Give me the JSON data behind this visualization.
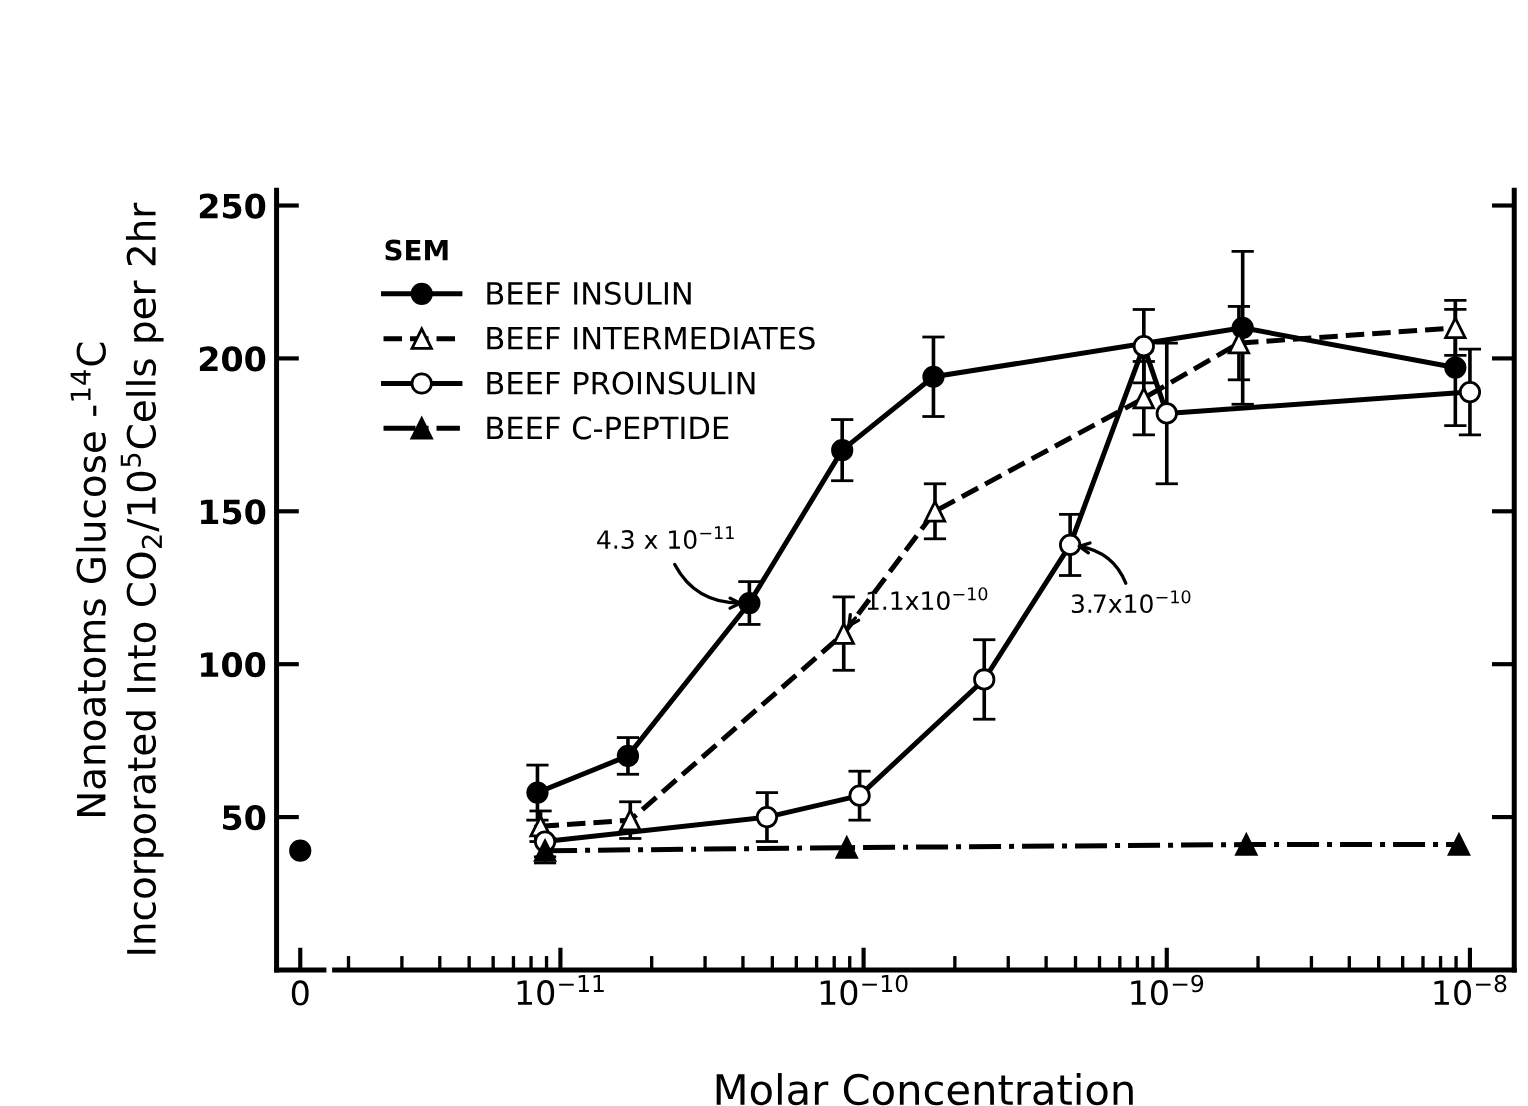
{
  "chart_data": [
    {
      "type": "scatter",
      "categories": [
        "0"
      ],
      "values": [
        39
      ],
      "color": "#000000",
      "marker": "circle",
      "ylim": [
        0,
        255
      ],
      "yticks": [
        50,
        100,
        150,
        200,
        250
      ],
      "ylabel": "Nanoatoms Glucose -$^{14}$C\nIncorporated Into CO$_{2}$/10$^{5}$Cells per 2hr"
    },
    {
      "type": "line",
      "log": "x",
      "xlim": [
        1.8e-12,
        1.4e-08
      ],
      "xticks": [
        {
          "value": 1e-11,
          "label": "10$^{−11}$"
        },
        {
          "value": 1e-10,
          "label": "10$^{−10}$"
        },
        {
          "value": 1e-09,
          "label": "10$^{−9}$"
        },
        {
          "value": 1e-08,
          "label": "10$^{−8}$"
        }
      ],
      "ylim": [
        0,
        255
      ],
      "yticks": [
        50,
        100,
        150,
        200,
        250
      ],
      "tick_labels": "x",
      "xlabel": "Molar Concentration",
      "legend": "top left",
      "legend_title": "SEM",
      "series": [
        {
          "name": "BEEF INSULIN",
          "color": "#000000",
          "marker": "circle",
          "line_style": "solid",
          "x": [
            8.4e-12,
            1.67e-11,
            4.2e-11,
            8.5e-11,
            1.7e-10,
            1.78e-09,
            8.95e-09
          ],
          "values": [
            58,
            70,
            120,
            170,
            194,
            210,
            197
          ],
          "errors": [
            9,
            6,
            7,
            10,
            13,
            25,
            19
          ]
        },
        {
          "name": "BEEF INTERMEDIATES",
          "color": "#000000",
          "marker": "triangle_open",
          "line_style": "dashed",
          "x": [
            8.6e-12,
            1.7e-11,
            8.6e-11,
            1.72e-10,
            8.4e-10,
            1.73e-09,
            8.95e-09
          ],
          "values": [
            47,
            49,
            110,
            150,
            187,
            205,
            210
          ],
          "errors": [
            5,
            6,
            12,
            9,
            12,
            12,
            9
          ]
        },
        {
          "name": "BEEF PROINSULIN",
          "color": "#000000",
          "marker": "circle_open",
          "line_style": "solid",
          "x": [
            8.9e-12,
            4.8e-11,
            9.7e-11,
            2.5e-10,
            4.8e-10,
            8.4e-10,
            1e-09,
            1e-08
          ],
          "values": [
            42,
            50,
            57,
            95,
            139,
            204,
            182,
            189
          ],
          "errors": [
            5,
            8,
            8,
            13,
            10,
            12,
            23,
            14
          ]
        },
        {
          "name": "BEEF C-PEPTIDE",
          "color": "#000000",
          "marker": "triangle",
          "line_style": "dashdot",
          "x": [
            8.9e-12,
            8.8e-11,
            1.83e-09,
            9.2e-09
          ],
          "values": [
            39,
            40,
            41,
            41
          ],
          "errors": [
            4,
            null,
            null,
            null
          ]
        }
      ],
      "annotations": [
        {
          "text": "4.3 x 10$^{−11}$",
          "x": 4.2e-11,
          "y": 120
        },
        {
          "text": "1.1x10$^{−10}$",
          "x": 8.6e-11,
          "y": 110
        },
        {
          "text": "3.7x10$^{−10}$",
          "x": 4.8e-10,
          "y": 139
        }
      ]
    }
  ]
}
